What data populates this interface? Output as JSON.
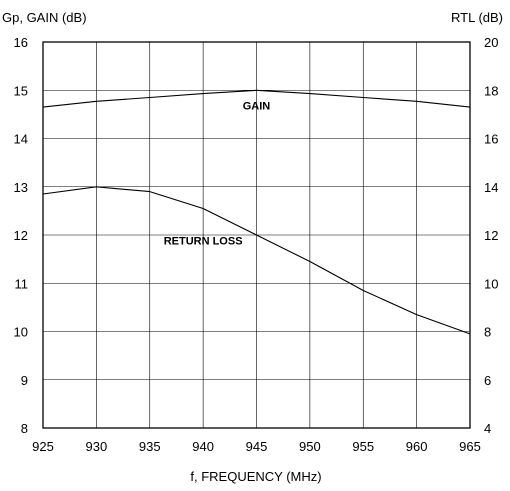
{
  "chart_data": {
    "type": "line",
    "xlabel": "f, FREQUENCY (MHz)",
    "ylabel_left": "Gp, GAIN (dB)",
    "ylabel_right": "RTL (dB)",
    "xlim": [
      925,
      965
    ],
    "ylim_left": [
      8,
      16
    ],
    "ylim_right": [
      4,
      20
    ],
    "x_ticks": [
      925,
      930,
      935,
      940,
      945,
      950,
      955,
      960,
      965
    ],
    "y_ticks_left": [
      8,
      9,
      10,
      11,
      12,
      13,
      14,
      15,
      16
    ],
    "y_ticks_right": [
      4,
      6,
      8,
      10,
      12,
      14,
      16,
      18,
      20
    ],
    "grid": true,
    "series": [
      {
        "name": "GAIN",
        "axis": "left",
        "x": [
          925,
          930,
          935,
          940,
          945,
          950,
          955,
          960,
          965
        ],
        "values": [
          14.65,
          14.77,
          14.85,
          14.93,
          15.0,
          14.93,
          14.85,
          14.77,
          14.65
        ]
      },
      {
        "name": "RETURN LOSS",
        "axis": "right",
        "x": [
          925,
          930,
          935,
          940,
          945,
          950,
          955,
          960,
          965
        ],
        "values": [
          13.7,
          14.0,
          13.8,
          13.1,
          12.0,
          10.9,
          9.7,
          8.7,
          7.9
        ]
      }
    ],
    "annotations": [
      {
        "text": "GAIN",
        "x": 945,
        "y": 14.6,
        "axis": "left"
      },
      {
        "text": "RETURN LOSS",
        "x": 940,
        "y": 11.8,
        "axis": "left"
      }
    ]
  }
}
